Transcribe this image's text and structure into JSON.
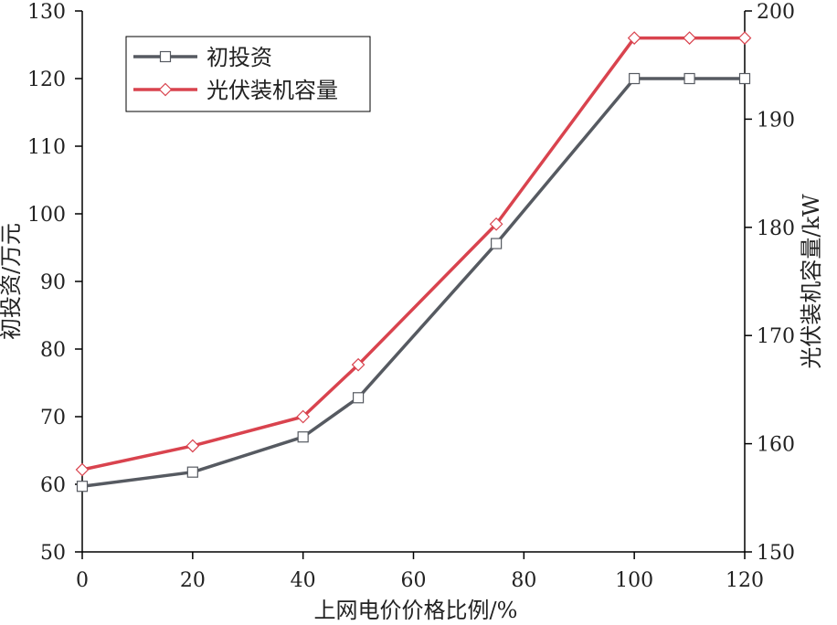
{
  "chart_data": {
    "type": "line",
    "xlabel": "上网电价价格比例/%",
    "ylabel_left": "初投资/万元",
    "ylabel_right": "光伏装机容量/kW",
    "xlim": [
      0,
      120
    ],
    "ylim_left": [
      50,
      130
    ],
    "ylim_right": [
      150,
      200
    ],
    "xticks": [
      0,
      20,
      40,
      60,
      80,
      100,
      120
    ],
    "yticks_left": [
      50,
      60,
      70,
      80,
      90,
      100,
      110,
      120,
      130
    ],
    "yticks_right": [
      150,
      160,
      170,
      180,
      190,
      200
    ],
    "grid": false,
    "legend_position": "top-left",
    "series": [
      {
        "name": "初投资",
        "axis": "left",
        "color": "#565a61",
        "marker": "square",
        "x": [
          0,
          20,
          40,
          50,
          75,
          100,
          110,
          120
        ],
        "y": [
          59.7,
          61.8,
          67.0,
          72.8,
          95.6,
          120.0,
          120.0,
          120.0
        ]
      },
      {
        "name": "光伏装机容量",
        "axis": "right",
        "color": "#d9434e",
        "marker": "diamond",
        "x": [
          0,
          20,
          40,
          50,
          75,
          100,
          110,
          120
        ],
        "y": [
          157.6,
          159.8,
          162.5,
          167.3,
          180.3,
          197.5,
          197.5,
          197.5
        ]
      }
    ]
  }
}
